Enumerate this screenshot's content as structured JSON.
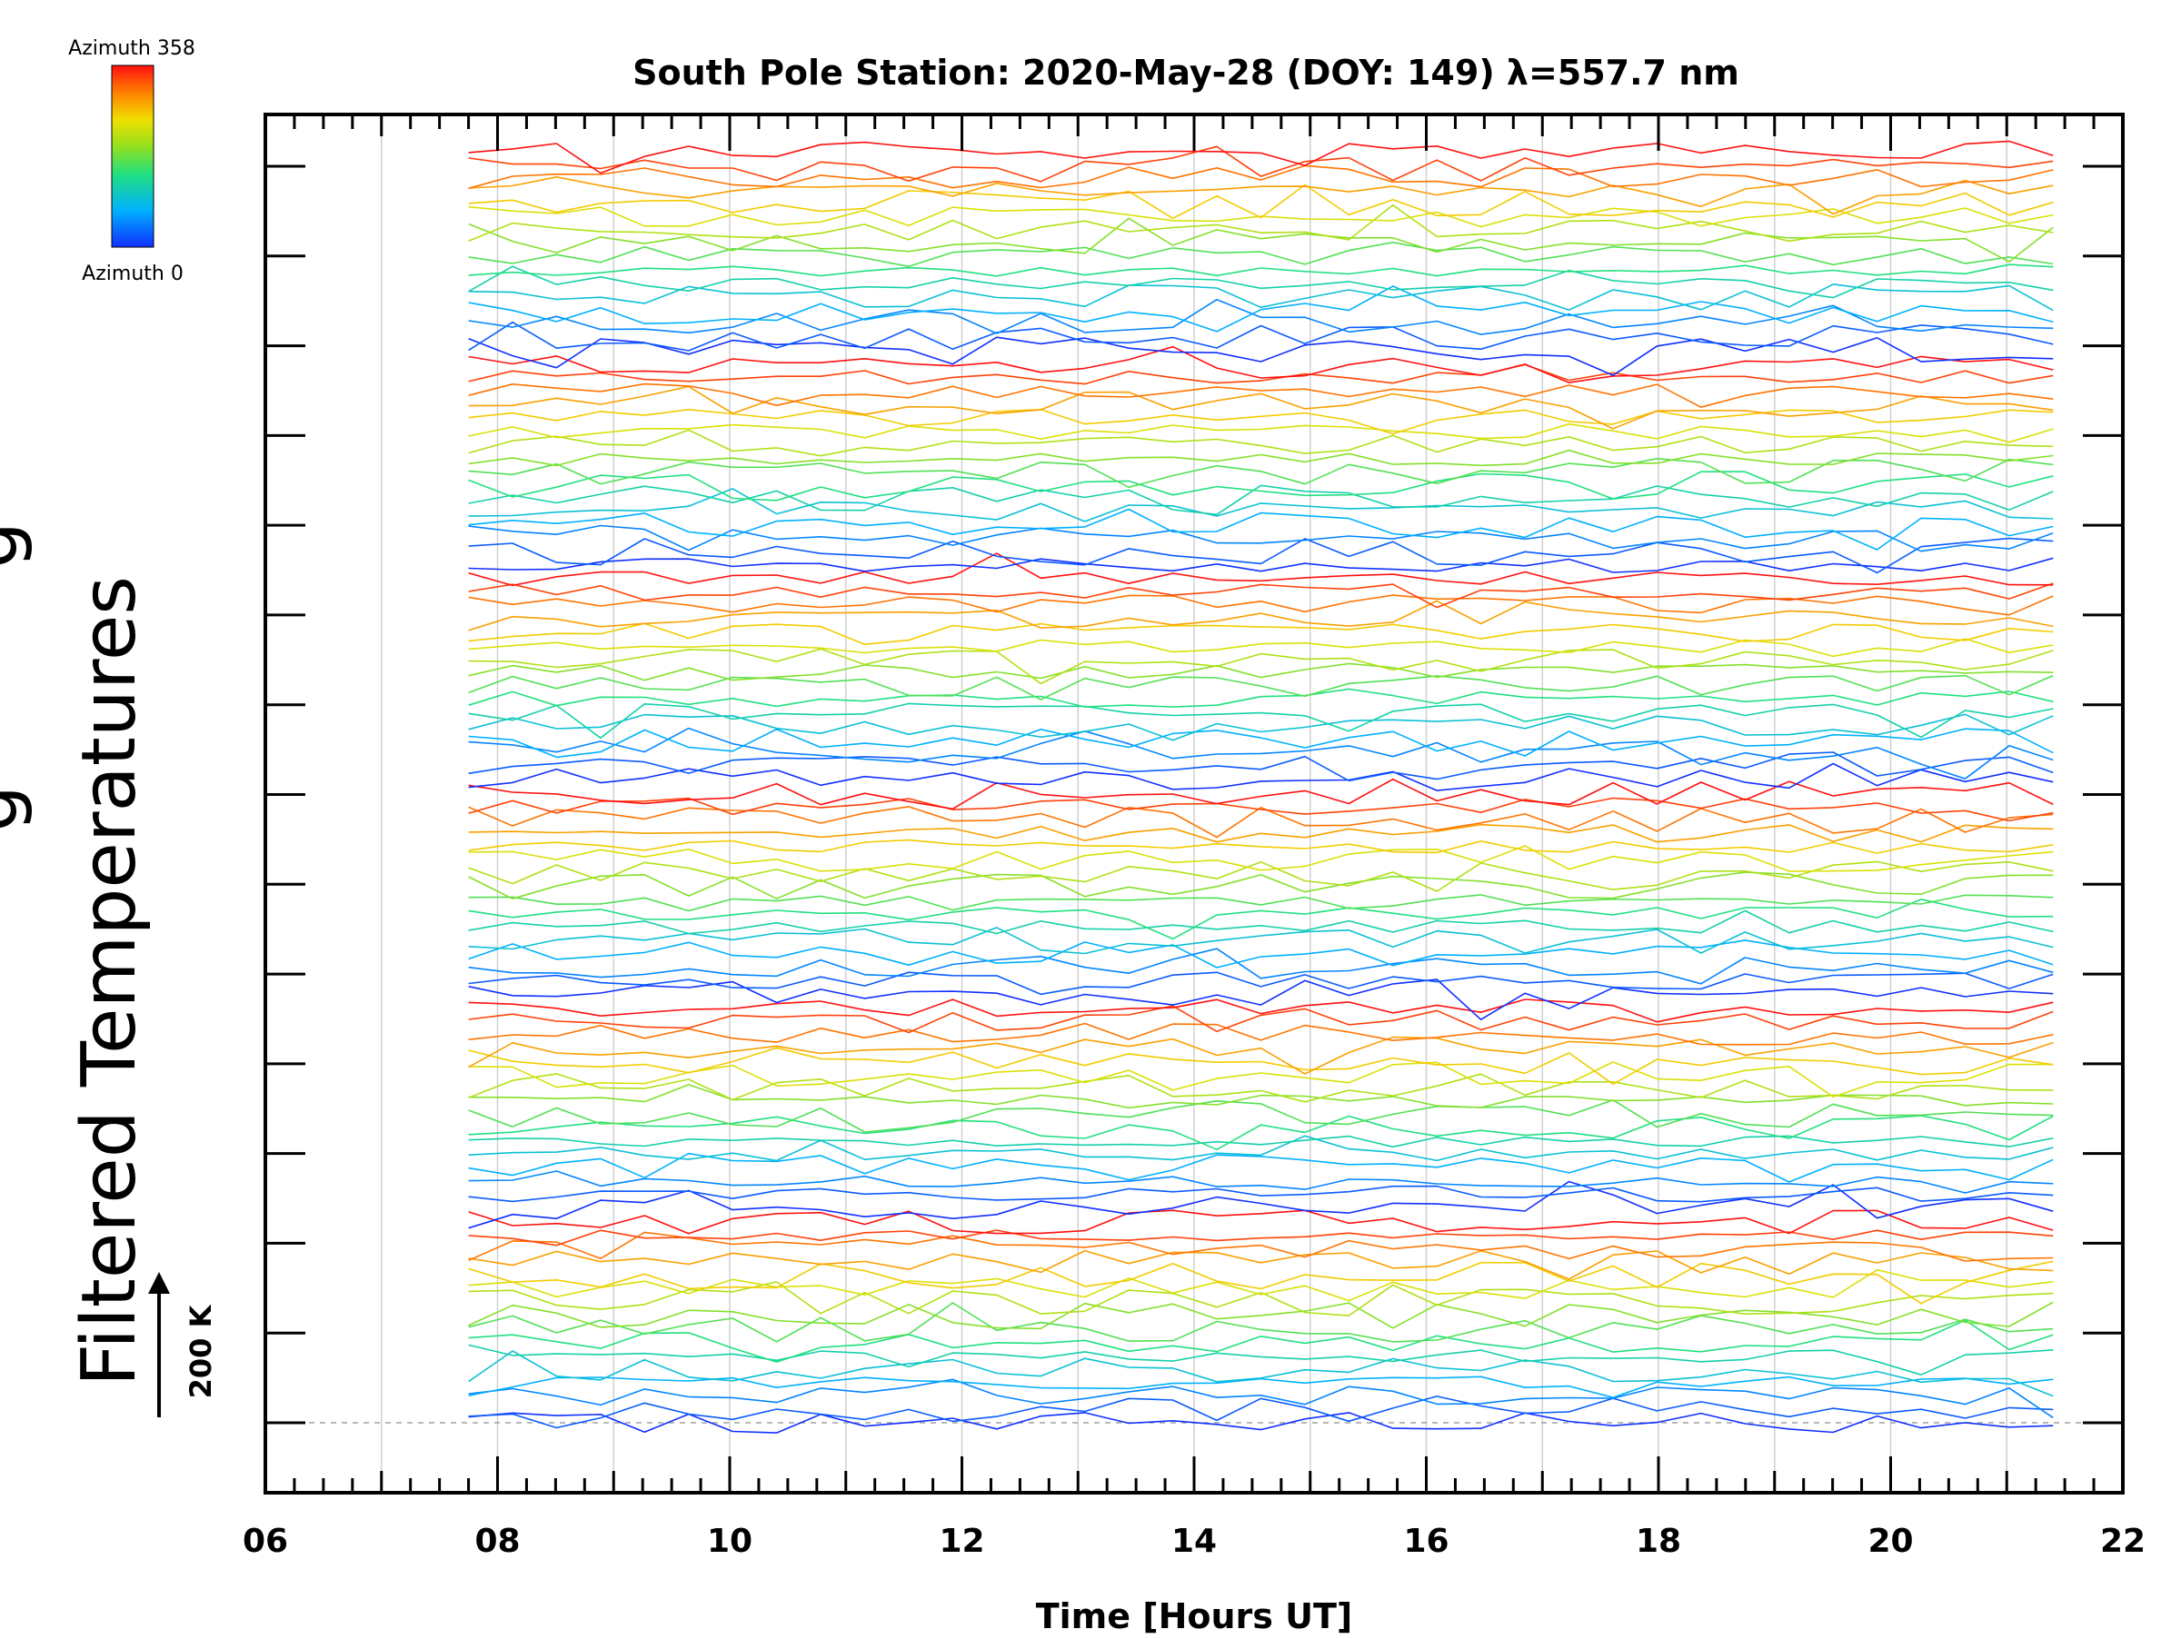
{
  "chart_data": {
    "type": "line",
    "title": "South Pole Station: 2020-May-28 (DOY: 149) λ=557.7 nm",
    "xlabel": "Time [Hours UT]",
    "ylabel": "Filtered Temperatures",
    "ylabel_partial": "g",
    "xlim": [
      6,
      22
    ],
    "x_ticks": [
      "06",
      "08",
      "10",
      "12",
      "14",
      "16",
      "18",
      "20",
      "22"
    ],
    "x_tick_values": [
      6,
      8,
      10,
      12,
      14,
      16,
      18,
      20,
      22
    ],
    "x_gridlines": [
      7,
      8,
      9,
      10,
      11,
      12,
      13,
      14,
      15,
      16,
      17,
      18,
      19,
      20,
      21
    ],
    "y_major_tick_count": 15,
    "n_series": 96,
    "series_per_band": 16,
    "series_offset_kelvin": 10,
    "t_start": 7.75,
    "t_end": 21.4,
    "n_samples": 37,
    "scale_bar": {
      "label": "200 K",
      "kelvin": 200
    },
    "colorbar": {
      "top_label": "Azimuth 358",
      "bottom_label": "Azimuth 0",
      "min": 0,
      "max": 358,
      "colormap": "rainbow"
    },
    "baseline": "dashed gray at lowest series"
  },
  "colors": {
    "axes": "#000000",
    "gridline": "#d0d0d0",
    "baseline": "#a0a0a0"
  }
}
